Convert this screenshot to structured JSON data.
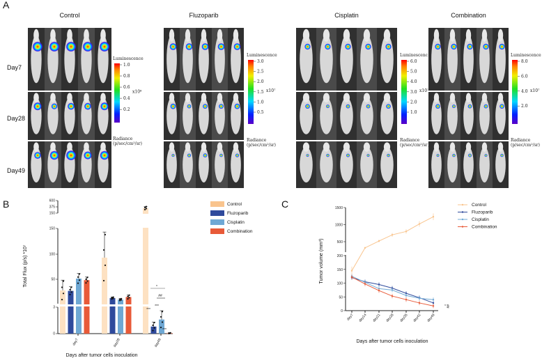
{
  "panel_a": {
    "label": "A",
    "groups": [
      {
        "title": "Control",
        "cb_title": "Luminescence",
        "cb_ticks": [
          "1.0",
          "0.8",
          "0.6",
          "0.4",
          "0.2"
        ],
        "cb_exp": "x10⁸",
        "cb_unit1": "Radiance",
        "cb_unit2": "(p/sec/cm²/sr)"
      },
      {
        "title": "Fluzoparib",
        "cb_title": "Luminescence",
        "cb_ticks": [
          "3.0",
          "2.5",
          "2.0",
          "1.5",
          "1.0",
          "0.5"
        ],
        "cb_exp": "x10⁷",
        "cb_unit1": "Radiance",
        "cb_unit2": "(p/sec/cm²/sr)"
      },
      {
        "title": "Cisplatin",
        "cb_title": "Luminescence",
        "cb_ticks": [
          "6.0",
          "5.0",
          "4.0",
          "3.0",
          "2.0",
          "1.0"
        ],
        "cb_exp": "x10⁷",
        "cb_unit1": "Radiance",
        "cb_unit2": "(p/sec/cm²/sr)"
      },
      {
        "title": "Combination",
        "cb_title": "Luminescence",
        "cb_ticks": [
          "8.0",
          "6.0",
          "4.0",
          "2.0"
        ],
        "cb_exp": "x10⁷",
        "cb_unit1": "Radiance",
        "cb_unit2": "(p/sec/cm²/sr)"
      }
    ],
    "rows": [
      "Day7",
      "Day28",
      "Day49"
    ]
  },
  "colors": {
    "Control": "#f9c48d",
    "ControlBar": "#fde1c2",
    "Fluzoparib": "#2f4a9c",
    "Cisplatin": "#6fa8d4",
    "Combination": "#e85a38"
  },
  "chart_data": [
    {
      "panel": "B",
      "type": "bar",
      "ylabel": "Total Flux (p/s) *10⁷",
      "xlabel": "Days after tumor cells inoculation",
      "categories": [
        "day7",
        "day28",
        "day49"
      ],
      "yticks": [
        "0",
        "3",
        "50",
        "100",
        "150",
        "150",
        "375",
        "600"
      ],
      "series": [
        {
          "name": "Control",
          "values": [
            29,
            93,
            330
          ],
          "sd": [
            20,
            50,
            60
          ]
        },
        {
          "name": "Fluzoparib",
          "values": [
            28,
            14,
            0.8
          ],
          "sd": [
            8,
            2,
            0.5
          ]
        },
        {
          "name": "Cisplatin",
          "values": [
            52,
            11,
            1.6
          ],
          "sd": [
            10,
            2,
            1.0
          ]
        },
        {
          "name": "Combination",
          "values": [
            49,
            16,
            0.05
          ],
          "sd": [
            6,
            4,
            0.05
          ]
        }
      ],
      "annotations": [
        "***",
        "***",
        "***",
        "*",
        "##"
      ],
      "legend": "top-right"
    },
    {
      "panel": "C",
      "type": "line",
      "ylabel": "Tumor volume (mm³)",
      "xlabel": "Days after tumor cells inoculation",
      "categories": [
        "day7",
        "day14",
        "day21",
        "day28",
        "day35",
        "day42",
        "day49"
      ],
      "yticks": [
        0,
        50,
        100,
        150,
        200,
        500,
        1000,
        1500
      ],
      "series": [
        {
          "name": "Control",
          "values": [
            145,
            320,
            520,
            700,
            800,
            1020,
            1230
          ]
        },
        {
          "name": "Fluzoparib",
          "values": [
            120,
            105,
            95,
            82,
            63,
            47,
            28
          ]
        },
        {
          "name": "Cisplatin",
          "values": [
            125,
            103,
            80,
            75,
            55,
            45,
            40
          ]
        },
        {
          "name": "Combination",
          "values": [
            122,
            97,
            73,
            53,
            40,
            28,
            17
          ]
        }
      ],
      "annotations": [
        "*",
        "##"
      ],
      "legend": "top-right"
    }
  ],
  "panel_b": {
    "label": "B"
  },
  "panel_c": {
    "label": "C"
  }
}
